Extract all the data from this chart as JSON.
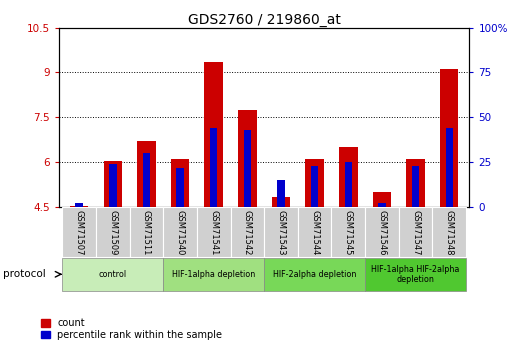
{
  "title": "GDS2760 / 219860_at",
  "samples": [
    "GSM71507",
    "GSM71509",
    "GSM71511",
    "GSM71540",
    "GSM71541",
    "GSM71542",
    "GSM71543",
    "GSM71544",
    "GSM71545",
    "GSM71546",
    "GSM71547",
    "GSM71548"
  ],
  "count_values": [
    4.55,
    6.05,
    6.7,
    6.1,
    9.35,
    7.75,
    4.85,
    6.1,
    6.5,
    5.0,
    6.1,
    9.1
  ],
  "percentile_values_pct": [
    2,
    24,
    30,
    22,
    44,
    43,
    15,
    23,
    25,
    2,
    23,
    44
  ],
  "ylim_left": [
    4.5,
    10.5
  ],
  "ylim_right": [
    0,
    100
  ],
  "yticks_left": [
    4.5,
    6.0,
    7.5,
    9.0,
    10.5
  ],
  "yticks_right": [
    0,
    25,
    50,
    75,
    100
  ],
  "ytick_labels_left": [
    "4.5",
    "6",
    "7.5",
    "9",
    "10.5"
  ],
  "ytick_labels_right": [
    "0",
    "25",
    "50",
    "75",
    "100%"
  ],
  "bar_bottom": 4.5,
  "groups": [
    {
      "label": "control",
      "start": 0,
      "end": 3,
      "color": "#c8edb8"
    },
    {
      "label": "HIF-1alpha depletion",
      "start": 3,
      "end": 6,
      "color": "#a0e080"
    },
    {
      "label": "HIF-2alpha depletion",
      "start": 6,
      "end": 9,
      "color": "#78d858"
    },
    {
      "label": "HIF-1alpha HIF-2alpha\ndepletion",
      "start": 9,
      "end": 12,
      "color": "#50c830"
    }
  ],
  "count_color": "#cc0000",
  "percentile_color": "#0000cc",
  "background_color": "#ffffff",
  "plot_bg_color": "#ffffff",
  "legend_count": "count",
  "legend_percentile": "percentile rank within the sample",
  "protocol_label": "protocol",
  "ylabel_left_color": "#cc0000",
  "ylabel_right_color": "#0000cc",
  "sample_box_color": "#d0d0d0"
}
